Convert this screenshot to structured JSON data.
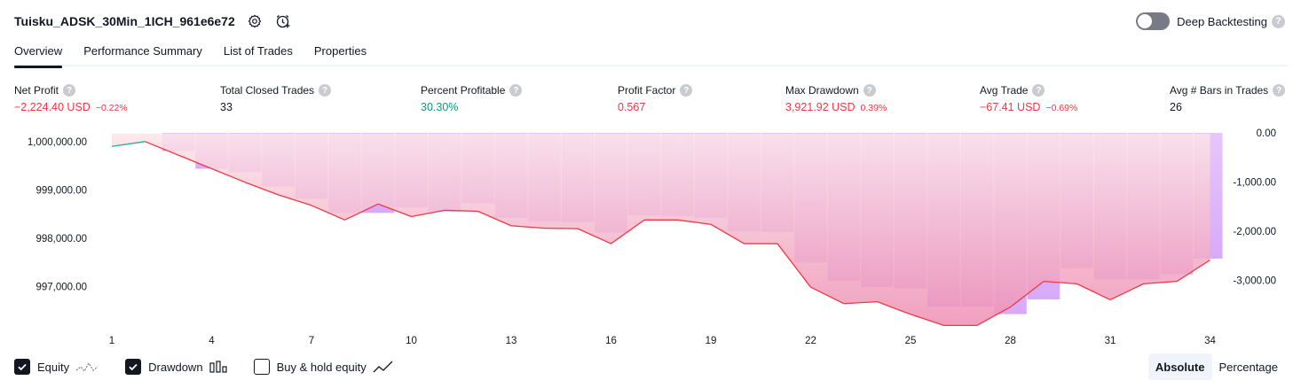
{
  "header": {
    "strategy_name": "Tuisku_ADSK_30Min_1ICH_961e6e72",
    "deep_backtesting_label": "Deep Backtesting",
    "deep_backtesting_enabled": false,
    "help_glyph": "?"
  },
  "icons": [
    "settings-icon",
    "add-alert-icon",
    "help-icon",
    "check-icon",
    "equity-line-icon",
    "drawdown-bars-icon",
    "buy-hold-line-icon"
  ],
  "tabs": [
    {
      "label": "Overview",
      "active": true
    },
    {
      "label": "Performance Summary",
      "active": false
    },
    {
      "label": "List of Trades",
      "active": false
    },
    {
      "label": "Properties",
      "active": false
    }
  ],
  "metrics": [
    {
      "label": "Net Profit",
      "value": "−2,224.40 USD",
      "pct": "−0.22%",
      "tone": "neg"
    },
    {
      "label": "Total Closed Trades",
      "value": "33",
      "pct": "",
      "tone": "neutral"
    },
    {
      "label": "Percent Profitable",
      "value": "30.30%",
      "pct": "",
      "tone": "pos"
    },
    {
      "label": "Profit Factor",
      "value": "0.567",
      "pct": "",
      "tone": "neg"
    },
    {
      "label": "Max Drawdown",
      "value": "3,921.92 USD",
      "pct": "0.39%",
      "tone": "neg"
    },
    {
      "label": "Avg Trade",
      "value": "−67.41 USD",
      "pct": "−0.69%",
      "tone": "neg"
    },
    {
      "label": "Avg # Bars in Trades",
      "value": "26",
      "pct": "",
      "tone": "neutral"
    }
  ],
  "colors": {
    "negative": "#f23645",
    "positive": "#089981",
    "equity_line": "#f23645",
    "equity_line_up": "#22ab94",
    "drawdown_bar": "#d1a6f7",
    "equity_fill_top": "#fce4e8",
    "equity_fill_bottom": "#ee8fb3"
  },
  "chart_data": {
    "type": "area",
    "x": [
      1,
      2,
      3,
      4,
      5,
      6,
      7,
      8,
      9,
      10,
      11,
      12,
      13,
      14,
      15,
      16,
      17,
      18,
      19,
      20,
      21,
      22,
      23,
      24,
      25,
      26,
      27,
      28,
      29,
      30,
      31,
      32,
      33,
      34
    ],
    "x_ticks": [
      "1",
      "4",
      "7",
      "10",
      "13",
      "16",
      "19",
      "22",
      "25",
      "28",
      "31",
      "34"
    ],
    "series": [
      {
        "values": [
          999900,
          1000000,
          999720,
          999440,
          999160,
          998900,
          998680,
          998380,
          998710,
          998450,
          998580,
          998560,
          998260,
          998210,
          998200,
          997890,
          998380,
          998380,
          998290,
          997890,
          997890,
          996990,
          996650,
          996690,
          996430,
          996200,
          996200,
          996580,
          997110,
          997060,
          996730,
          997060,
          997110,
          997550
        ]
      },
      {
        "values": [
          0,
          0,
          -370,
          -730,
          -800,
          -1090,
          -1340,
          -1630,
          -1630,
          -1520,
          -1600,
          -1430,
          -1730,
          -1810,
          -1820,
          -2030,
          -1680,
          -1690,
          -1730,
          -2000,
          -2020,
          -2640,
          -3010,
          -3140,
          -3170,
          -3540,
          -3540,
          -3690,
          -3390,
          -2760,
          -2980,
          -2980,
          -2880,
          -2560
        ]
      }
    ],
    "y_left_ticks": [
      "1,000,000.00",
      "999,000.00",
      "998,000.00",
      "997,000.00"
    ],
    "y_right_ticks": [
      "0.00",
      "-1,000.00",
      "-2,000.00",
      "-3,000.00"
    ],
    "ylim_left": [
      996170,
      1000180
    ],
    "ylim_right": [
      -3950,
      0
    ]
  },
  "legend": [
    {
      "label": "Equity",
      "checked": true
    },
    {
      "label": "Drawdown",
      "checked": true
    },
    {
      "label": "Buy & hold equity",
      "checked": false
    }
  ],
  "scale_switch": [
    {
      "label": "Absolute",
      "active": true
    },
    {
      "label": "Percentage",
      "active": false
    }
  ]
}
